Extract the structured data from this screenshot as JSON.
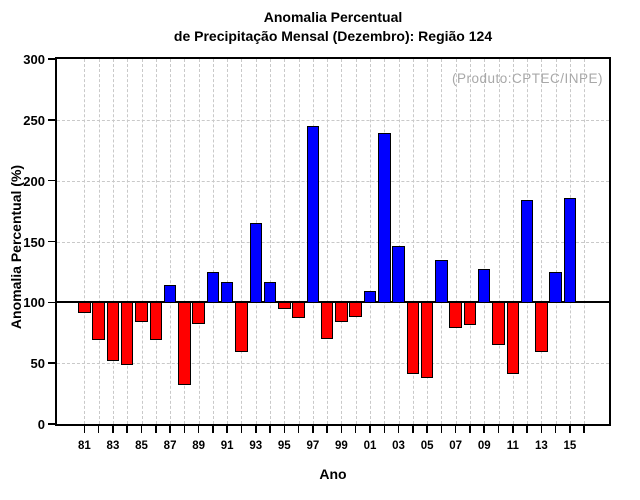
{
  "title": {
    "line1": "Anomalia Percentual",
    "line2": "de Precipitação Mensal (Dezembro): Região 124"
  },
  "annotation": {
    "produto": "(Produto:CPTEC/INPE)",
    "color": "#a8a8a8"
  },
  "axes": {
    "y_label": "Anomalia Percentual (%)",
    "x_label": "Ano",
    "y_ticks": [
      0,
      50,
      100,
      150,
      200,
      250,
      300
    ],
    "x_tick_labels": [
      "81",
      "83",
      "85",
      "87",
      "89",
      "91",
      "93",
      "95",
      "97",
      "99",
      "01",
      "03",
      "05",
      "07",
      "09",
      "11",
      "13",
      "15"
    ]
  },
  "chart_data": {
    "type": "bar",
    "title": "Anomalia Percentual de Precipitação Mensal (Dezembro): Região 124",
    "xlabel": "Ano",
    "ylabel": "Anomalia Percentual (%)",
    "ylim": [
      0,
      300
    ],
    "baseline": 100,
    "grid": "dashed light gray, horizontal every 50, vertical every year",
    "legend": "none",
    "years": [
      1981,
      1982,
      1983,
      1984,
      1985,
      1986,
      1987,
      1988,
      1989,
      1990,
      1991,
      1992,
      1993,
      1994,
      1995,
      1996,
      1997,
      1998,
      1999,
      2000,
      2001,
      2002,
      2003,
      2004,
      2005,
      2006,
      2007,
      2008,
      2009,
      2010,
      2011,
      2012,
      2013,
      2014,
      2015
    ],
    "values": [
      92,
      70,
      53,
      49,
      85,
      70,
      114,
      33,
      83,
      125,
      117,
      60,
      165,
      117,
      95,
      88,
      245,
      71,
      85,
      89,
      109,
      239,
      146,
      42,
      39,
      135,
      80,
      82,
      127,
      66,
      42,
      184,
      60,
      125,
      186
    ],
    "colors": {
      "above_baseline": "#0000ff",
      "below_baseline": "#ff0000",
      "bar_outline": "#000000",
      "gridline": "#c9c9c9",
      "frame": "#000000"
    }
  }
}
